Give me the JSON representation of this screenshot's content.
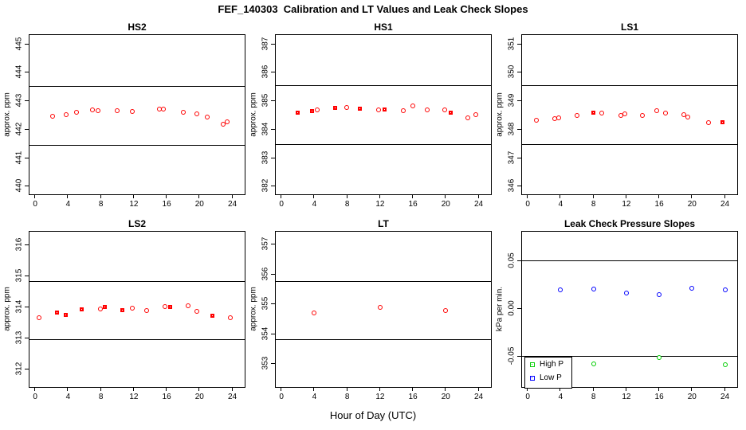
{
  "page_title": "FEF_140303  Calibration and LT Values and Leak Check Slopes",
  "xlabel_main": "Hour of Day (UTC)",
  "colors": {
    "cal_red": "#FF0000",
    "high_p_green": "#00CD00",
    "low_p_blue": "#0000FF",
    "axis_black": "#000000"
  },
  "chart_data": [
    {
      "id": "hs2",
      "type": "scatter",
      "title": "HS2",
      "ylabel": "approx. ppm",
      "xlim": [
        -0.7,
        25.5
      ],
      "ylim": [
        439.7,
        445.3
      ],
      "xticks": [
        0,
        4,
        8,
        12,
        16,
        20,
        24
      ],
      "yticks": [
        440,
        441,
        442,
        443,
        444,
        445
      ],
      "ytick_labels": [
        "440",
        "441",
        "442",
        "443",
        "444",
        "445"
      ],
      "hlines": [
        443.5,
        441.45
      ],
      "series": [
        {
          "name": "calibration",
          "color": "#FF0000",
          "points": [
            {
              "x": 2.1,
              "y": 442.44,
              "m": "circle"
            },
            {
              "x": 3.8,
              "y": 442.49,
              "m": "circle"
            },
            {
              "x": 5.0,
              "y": 442.58,
              "m": "circle"
            },
            {
              "x": 7.0,
              "y": 442.66,
              "m": "circle"
            },
            {
              "x": 7.6,
              "y": 442.64,
              "m": "circle"
            },
            {
              "x": 10.0,
              "y": 442.64,
              "m": "circle"
            },
            {
              "x": 11.8,
              "y": 442.62,
              "m": "circle"
            },
            {
              "x": 15.1,
              "y": 442.69,
              "m": "circle"
            },
            {
              "x": 15.6,
              "y": 442.69,
              "m": "circle"
            },
            {
              "x": 18.0,
              "y": 442.58,
              "m": "circle"
            },
            {
              "x": 19.7,
              "y": 442.52,
              "m": "circle"
            },
            {
              "x": 20.9,
              "y": 442.43,
              "m": "circle"
            },
            {
              "x": 22.9,
              "y": 442.16,
              "m": "circle"
            },
            {
              "x": 23.4,
              "y": 442.24,
              "m": "circle"
            }
          ]
        }
      ]
    },
    {
      "id": "hs1",
      "type": "scatter",
      "title": "HS1",
      "ylabel": "approx. ppm",
      "xlim": [
        -0.7,
        25.5
      ],
      "ylim": [
        381.7,
        387.3
      ],
      "xticks": [
        0,
        4,
        8,
        12,
        16,
        20,
        24
      ],
      "yticks": [
        382,
        383,
        384,
        385,
        386,
        387
      ],
      "ytick_labels": [
        "382",
        "383",
        "384",
        "385",
        "386",
        "387"
      ],
      "hlines": [
        385.53,
        383.46
      ],
      "series": [
        {
          "name": "calibration",
          "color": "#FF0000",
          "points": [
            {
              "x": 2.0,
              "y": 384.57,
              "m": "square"
            },
            {
              "x": 3.8,
              "y": 384.6,
              "m": "square"
            },
            {
              "x": 4.3,
              "y": 384.66,
              "m": "circle"
            },
            {
              "x": 6.6,
              "y": 384.73,
              "m": "square"
            },
            {
              "x": 7.9,
              "y": 384.76,
              "m": "circle"
            },
            {
              "x": 9.6,
              "y": 384.7,
              "m": "square"
            },
            {
              "x": 11.8,
              "y": 384.68,
              "m": "circle"
            },
            {
              "x": 12.6,
              "y": 384.66,
              "m": "square"
            },
            {
              "x": 14.8,
              "y": 384.64,
              "m": "circle"
            },
            {
              "x": 16.0,
              "y": 384.82,
              "m": "circle"
            },
            {
              "x": 17.7,
              "y": 384.68,
              "m": "circle"
            },
            {
              "x": 19.9,
              "y": 384.66,
              "m": "circle"
            },
            {
              "x": 20.6,
              "y": 384.55,
              "m": "square"
            },
            {
              "x": 22.7,
              "y": 384.4,
              "m": "circle"
            },
            {
              "x": 23.7,
              "y": 384.5,
              "m": "circle"
            }
          ]
        }
      ]
    },
    {
      "id": "ls1",
      "type": "scatter",
      "title": "LS1",
      "ylabel": "approx. ppm",
      "xlim": [
        -0.7,
        25.5
      ],
      "ylim": [
        345.7,
        351.3
      ],
      "xticks": [
        0,
        4,
        8,
        12,
        16,
        20,
        24
      ],
      "yticks": [
        346,
        347,
        348,
        349,
        350,
        351
      ],
      "ytick_labels": [
        "346",
        "347",
        "348",
        "349",
        "350",
        "351"
      ],
      "hlines": [
        349.53,
        347.46
      ],
      "series": [
        {
          "name": "calibration",
          "color": "#FF0000",
          "points": [
            {
              "x": 1.0,
              "y": 348.3,
              "m": "circle"
            },
            {
              "x": 3.3,
              "y": 348.37,
              "m": "circle"
            },
            {
              "x": 3.8,
              "y": 348.4,
              "m": "circle"
            },
            {
              "x": 6.0,
              "y": 348.48,
              "m": "circle"
            },
            {
              "x": 8.0,
              "y": 348.57,
              "m": "square"
            },
            {
              "x": 9.0,
              "y": 348.55,
              "m": "circle"
            },
            {
              "x": 11.3,
              "y": 348.48,
              "m": "circle"
            },
            {
              "x": 11.8,
              "y": 348.52,
              "m": "circle"
            },
            {
              "x": 14.0,
              "y": 348.48,
              "m": "circle"
            },
            {
              "x": 15.7,
              "y": 348.63,
              "m": "circle"
            },
            {
              "x": 16.8,
              "y": 348.57,
              "m": "circle"
            },
            {
              "x": 19.0,
              "y": 348.5,
              "m": "circle"
            },
            {
              "x": 19.5,
              "y": 348.43,
              "m": "circle"
            },
            {
              "x": 22.0,
              "y": 348.22,
              "m": "circle"
            },
            {
              "x": 23.8,
              "y": 348.22,
              "m": "square"
            }
          ]
        }
      ]
    },
    {
      "id": "ls2",
      "type": "scatter",
      "title": "LS2",
      "ylabel": "approx. ppm",
      "xlim": [
        -0.7,
        25.5
      ],
      "ylim": [
        311.4,
        316.4
      ],
      "xticks": [
        0,
        4,
        8,
        12,
        16,
        20,
        24
      ],
      "yticks": [
        312,
        313,
        314,
        315,
        316
      ],
      "ytick_labels": [
        "312",
        "313",
        "314",
        "315",
        "316"
      ],
      "hlines": [
        314.82,
        312.93
      ],
      "series": [
        {
          "name": "calibration",
          "color": "#FF0000",
          "points": [
            {
              "x": 0.5,
              "y": 313.62,
              "m": "circle"
            },
            {
              "x": 2.7,
              "y": 313.78,
              "m": "square"
            },
            {
              "x": 3.8,
              "y": 313.72,
              "m": "square"
            },
            {
              "x": 5.7,
              "y": 313.88,
              "m": "square"
            },
            {
              "x": 7.9,
              "y": 313.92,
              "m": "circle"
            },
            {
              "x": 8.5,
              "y": 313.97,
              "m": "square"
            },
            {
              "x": 10.7,
              "y": 313.87,
              "m": "square"
            },
            {
              "x": 11.8,
              "y": 313.93,
              "m": "circle"
            },
            {
              "x": 13.6,
              "y": 313.87,
              "m": "circle"
            },
            {
              "x": 15.8,
              "y": 314.0,
              "m": "circle"
            },
            {
              "x": 16.5,
              "y": 313.97,
              "m": "square"
            },
            {
              "x": 18.6,
              "y": 314.02,
              "m": "circle"
            },
            {
              "x": 19.7,
              "y": 313.83,
              "m": "circle"
            },
            {
              "x": 21.6,
              "y": 313.68,
              "m": "square"
            },
            {
              "x": 23.8,
              "y": 313.63,
              "m": "circle"
            }
          ]
        }
      ]
    },
    {
      "id": "lt",
      "type": "scatter",
      "title": "LT",
      "ylabel": "approx. ppm",
      "xlim": [
        -0.7,
        25.5
      ],
      "ylim": [
        352.2,
        357.4
      ],
      "xticks": [
        0,
        4,
        8,
        12,
        16,
        20,
        24
      ],
      "yticks": [
        353,
        354,
        355,
        356,
        357
      ],
      "ytick_labels": [
        "353",
        "354",
        "355",
        "356",
        "357"
      ],
      "hlines": [
        355.76,
        353.79
      ],
      "series": [
        {
          "name": "LT",
          "color": "#FF0000",
          "points": [
            {
              "x": 4.0,
              "y": 354.67,
              "m": "circle"
            },
            {
              "x": 12.0,
              "y": 354.87,
              "m": "circle"
            },
            {
              "x": 20.0,
              "y": 354.77,
              "m": "circle"
            }
          ]
        }
      ]
    },
    {
      "id": "leak",
      "type": "scatter",
      "title": "Leak Check Pressure Slopes",
      "ylabel": "kPa per min.",
      "xlim": [
        -0.7,
        25.5
      ],
      "ylim": [
        -0.082,
        0.08
      ],
      "xticks": [
        0,
        4,
        8,
        12,
        16,
        20,
        24
      ],
      "yticks": [
        -0.05,
        0.0,
        0.05
      ],
      "ytick_labels": [
        "-0.05",
        "0.00",
        "0.05"
      ],
      "hlines": [
        0.05,
        -0.05
      ],
      "series": [
        {
          "name": "High P",
          "color": "#00CD00",
          "points": [
            {
              "x": 8.0,
              "y": -0.058,
              "m": "circle"
            },
            {
              "x": 16.0,
              "y": -0.051,
              "m": "circle"
            },
            {
              "x": 24.0,
              "y": -0.059,
              "m": "circle"
            }
          ]
        },
        {
          "name": "Low P",
          "color": "#0000FF",
          "points": [
            {
              "x": 4.0,
              "y": 0.019,
              "m": "circle"
            },
            {
              "x": 8.0,
              "y": 0.02,
              "m": "circle"
            },
            {
              "x": 12.0,
              "y": 0.016,
              "m": "circle"
            },
            {
              "x": 16.0,
              "y": 0.014,
              "m": "circle"
            },
            {
              "x": 20.0,
              "y": 0.021,
              "m": "circle"
            },
            {
              "x": 24.0,
              "y": 0.019,
              "m": "circle"
            }
          ]
        }
      ],
      "legend": [
        {
          "label": "High P",
          "color": "#00CD00"
        },
        {
          "label": "Low P",
          "color": "#0000FF"
        }
      ],
      "legend_position": "bottom-left"
    }
  ]
}
